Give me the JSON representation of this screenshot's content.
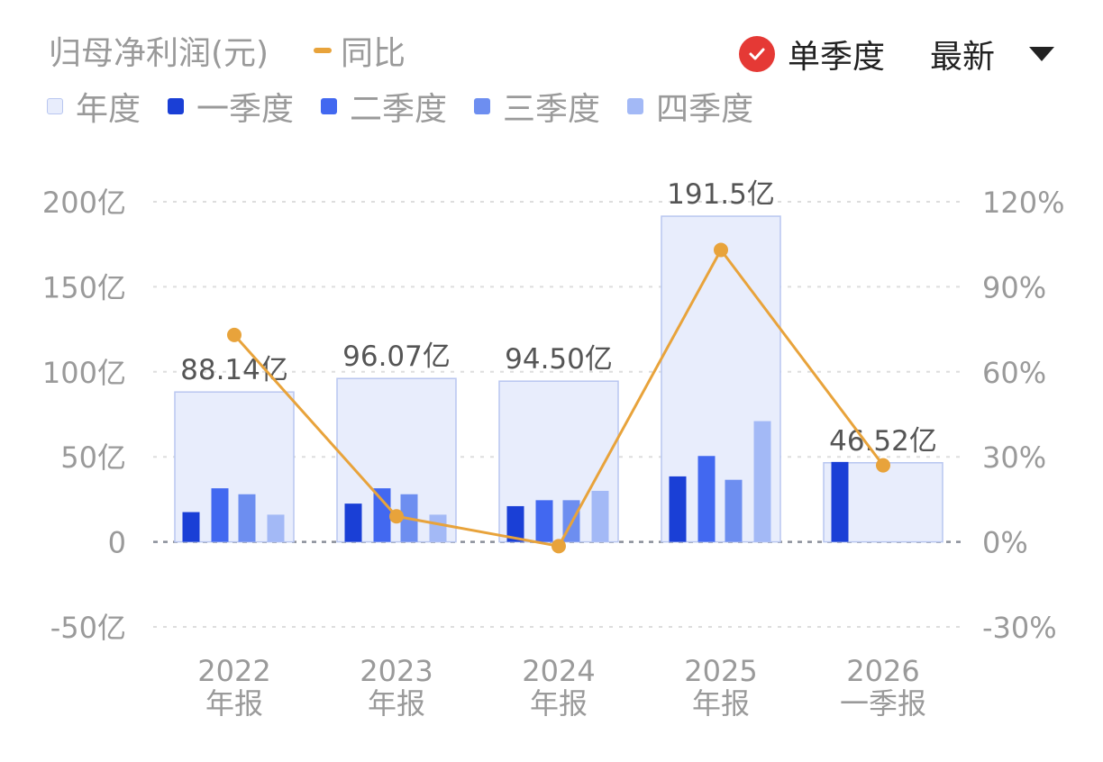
{
  "header": {
    "metric_title": "归母净利润(元)",
    "yoy_label": "同比",
    "single_quarter_label": "单季度",
    "sort_label": "最新"
  },
  "legend": [
    {
      "label": "年度",
      "color": "#e8edfc",
      "border": "#b8c6f0"
    },
    {
      "label": "一季度",
      "color": "#1a3fd6"
    },
    {
      "label": "二季度",
      "color": "#4268f0"
    },
    {
      "label": "三季度",
      "color": "#6d8ef0"
    },
    {
      "label": "四季度",
      "color": "#a3b9f6"
    }
  ],
  "colors": {
    "line": "#e8a33b",
    "check": "#e53935",
    "grid": "#dddddd",
    "axis_text": "#9a9a9a",
    "label_text": "#555555"
  },
  "chart_data": {
    "type": "bar",
    "categories": [
      [
        "2022",
        "年报"
      ],
      [
        "2023",
        "年报"
      ],
      [
        "2024",
        "年报"
      ],
      [
        "2025",
        "年报"
      ],
      [
        "2026",
        "一季报"
      ]
    ],
    "annual": [
      88.14,
      96.07,
      94.5,
      191.5,
      46.52
    ],
    "annual_labels": [
      "88.14亿",
      "96.07亿",
      "94.50亿",
      "191.5亿",
      "46.52亿"
    ],
    "quarters": [
      [
        17.5,
        31.5,
        28,
        16
      ],
      [
        22.5,
        31.5,
        28,
        16
      ],
      [
        21,
        24.5,
        24.5,
        30
      ],
      [
        38.5,
        50.5,
        36.5,
        71
      ],
      [
        47,
        null,
        null,
        null
      ]
    ],
    "yoy_percent": [
      73,
      9,
      -1.5,
      103,
      27
    ],
    "left_axis": {
      "ticks": [
        "200亿",
        "150亿",
        "100亿",
        "50亿",
        "0",
        "-50亿"
      ],
      "range": [
        -50,
        200
      ]
    },
    "right_axis": {
      "ticks": [
        "120%",
        "90%",
        "60%",
        "30%",
        "0%",
        "-30%"
      ],
      "range": [
        -30,
        120
      ]
    },
    "grid": true
  }
}
